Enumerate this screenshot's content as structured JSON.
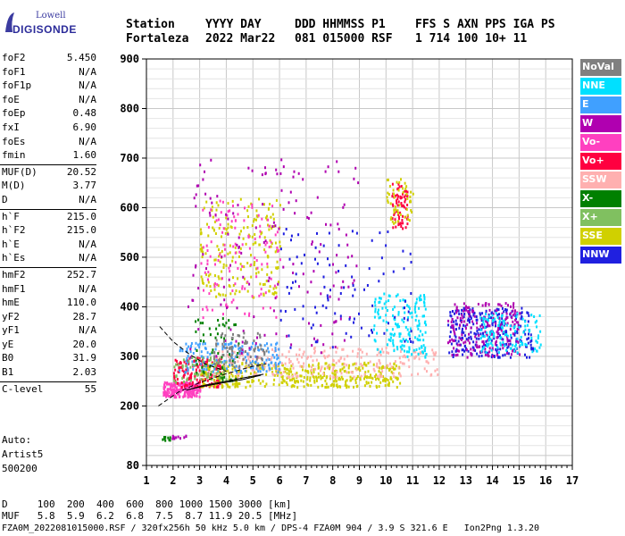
{
  "logo": {
    "line1": "Lowell",
    "line2": "DIGISONDE"
  },
  "header": {
    "row1": [
      "Station",
      "YYYY DAY",
      "DDD HHMMSS P1",
      "FFS S AXN PPS IGA PS"
    ],
    "row2": [
      "Fortaleza",
      "2022 Mar22",
      "081 015000 RSF",
      "1 714 100 10+ 11"
    ]
  },
  "params_groups": [
    [
      [
        "foF2",
        "5.450"
      ],
      [
        "foF1",
        "N/A"
      ],
      [
        "foF1p",
        "N/A"
      ],
      [
        "foE",
        "N/A"
      ],
      [
        "foEp",
        "0.48"
      ],
      [
        "fxI",
        "6.90"
      ],
      [
        "foEs",
        "N/A"
      ],
      [
        "fmin",
        "1.60"
      ]
    ],
    [
      [
        "MUF(D)",
        "20.52"
      ],
      [
        "M(D)",
        "3.77"
      ],
      [
        "D",
        "N/A"
      ]
    ],
    [
      [
        "h`F",
        "215.0"
      ],
      [
        "h`F2",
        "215.0"
      ],
      [
        "h`E",
        "N/A"
      ],
      [
        "h`Es",
        "N/A"
      ]
    ],
    [
      [
        "hmF2",
        "252.7"
      ],
      [
        "hmF1",
        "N/A"
      ],
      [
        "hmE",
        "110.0"
      ],
      [
        "yF2",
        "28.7"
      ],
      [
        "yF1",
        "N/A"
      ],
      [
        "yE",
        "20.0"
      ],
      [
        "B0",
        "31.9"
      ],
      [
        "B1",
        "2.03"
      ]
    ],
    [
      [
        "C-level",
        "55"
      ]
    ]
  ],
  "auto": [
    "Auto:",
    "Artist5",
    "500200"
  ],
  "legend": [
    {
      "label": "NoVal",
      "color": "#808080"
    },
    {
      "label": "NNE",
      "color": "#00e0ff"
    },
    {
      "label": "E",
      "color": "#40a0ff"
    },
    {
      "label": "W",
      "color": "#b000b0"
    },
    {
      "label": "Vo-",
      "color": "#ff40c0"
    },
    {
      "label": "Vo+",
      "color": "#ff0040"
    },
    {
      "label": "SSW",
      "color": "#ffb0b0"
    },
    {
      "label": "X-",
      "color": "#008000"
    },
    {
      "label": "X+",
      "color": "#80c060"
    },
    {
      "label": "SSE",
      "color": "#d0d000"
    },
    {
      "label": "NNW",
      "color": "#2020e0"
    }
  ],
  "footer": {
    "d_row": "D     100  200  400  600  800 1000 1500 3000 [km]",
    "muf_row": "MUF   5.8  5.9  6.2  6.8  7.5  8.7 11.9 20.5 [MHz]",
    "info_row": "FZA0M_2022081015000.RSF / 320fx256h 50 kHz 5.0 km / DPS-4 FZA0M 904 / 3.9 S 321.6 E   Ion2Png 1.3.20"
  },
  "chart_data": {
    "type": "scatter",
    "xlim": [
      1,
      17
    ],
    "ylim": [
      80,
      900
    ],
    "x_ticks": [
      1,
      2,
      3,
      4,
      5,
      6,
      7,
      8,
      9,
      10,
      11,
      12,
      13,
      14,
      15,
      16,
      17
    ],
    "y_ticks": [
      80,
      200,
      300,
      400,
      500,
      600,
      700,
      800,
      900
    ],
    "grid": true,
    "legend_position": "right",
    "clusters": [
      {
        "color": "#ff40c0",
        "x": [
          1.6,
          3.0
        ],
        "y": [
          220,
          250
        ],
        "n": 220
      },
      {
        "color": "#ff0040",
        "x": [
          2.0,
          3.8
        ],
        "y": [
          240,
          300
        ],
        "n": 160
      },
      {
        "color": "#d0d000",
        "x": [
          3.0,
          10.5
        ],
        "y": [
          240,
          290
        ],
        "n": 420
      },
      {
        "color": "#ffb0b0",
        "x": [
          3.5,
          12.0
        ],
        "y": [
          260,
          320
        ],
        "n": 260
      },
      {
        "color": "#40a0ff",
        "x": [
          2.2,
          6.0
        ],
        "y": [
          270,
          330
        ],
        "n": 160
      },
      {
        "color": "#00e0ff",
        "x": [
          9.5,
          11.5
        ],
        "y": [
          300,
          430
        ],
        "n": 160
      },
      {
        "color": "#2020e0",
        "x": [
          12.3,
          15.5
        ],
        "y": [
          300,
          400
        ],
        "n": 260
      },
      {
        "color": "#b000b0",
        "x": [
          12.3,
          15.0
        ],
        "y": [
          300,
          410
        ],
        "n": 200
      },
      {
        "color": "#00e0ff",
        "x": [
          13.5,
          15.8
        ],
        "y": [
          310,
          390
        ],
        "n": 120
      },
      {
        "color": "#d0d000",
        "x": [
          3.0,
          6.0
        ],
        "y": [
          420,
          620
        ],
        "n": 200
      },
      {
        "color": "#ff40c0",
        "x": [
          3.0,
          6.0
        ],
        "y": [
          380,
          620
        ],
        "n": 120
      },
      {
        "color": "#b000b0",
        "x": [
          2.5,
          9.0
        ],
        "y": [
          300,
          700
        ],
        "n": 160
      },
      {
        "color": "#ff0040",
        "x": [
          10.2,
          10.8
        ],
        "y": [
          560,
          650
        ],
        "n": 70
      },
      {
        "color": "#d0d000",
        "x": [
          10.0,
          11.0
        ],
        "y": [
          570,
          660
        ],
        "n": 50
      },
      {
        "color": "#008000",
        "x": [
          2.8,
          4.5
        ],
        "y": [
          250,
          380
        ],
        "n": 60
      },
      {
        "color": "#80c060",
        "x": [
          2.0,
          4.0
        ],
        "y": [
          250,
          300
        ],
        "n": 60
      },
      {
        "color": "#2020e0",
        "x": [
          6.0,
          11.0
        ],
        "y": [
          320,
          560
        ],
        "n": 100
      },
      {
        "color": "#808080",
        "x": [
          3.5,
          5.5
        ],
        "y": [
          280,
          350
        ],
        "n": 80
      }
    ],
    "low_points": [
      {
        "color": "#008000",
        "x": [
          1.5,
          1.9
        ],
        "y": [
          130,
          140
        ],
        "n": 10
      },
      {
        "color": "#b000b0",
        "x": [
          1.9,
          2.5
        ],
        "y": [
          136,
          142
        ],
        "n": 10
      }
    ],
    "curves": [
      {
        "style": "dashed",
        "points": [
          [
            1.45,
            200
          ],
          [
            2.2,
            228
          ],
          [
            3.0,
            247
          ],
          [
            4.0,
            265
          ],
          [
            5.0,
            280
          ],
          [
            5.5,
            285
          ]
        ]
      },
      {
        "style": "dashed",
        "points": [
          [
            1.5,
            360
          ],
          [
            2.0,
            330
          ],
          [
            2.6,
            305
          ],
          [
            3.2,
            285
          ],
          [
            4.0,
            270
          ]
        ]
      },
      {
        "style": "solid",
        "points": [
          [
            2.5,
            232
          ],
          [
            3.2,
            242
          ],
          [
            4.0,
            250
          ],
          [
            4.6,
            256
          ],
          [
            5.0,
            260
          ],
          [
            5.4,
            264
          ]
        ]
      },
      {
        "style": "solid",
        "points": [
          [
            2.5,
            232
          ],
          [
            3.0,
            238
          ],
          [
            3.8,
            246
          ],
          [
            4.6,
            253
          ],
          [
            5.3,
            262
          ]
        ]
      }
    ]
  }
}
